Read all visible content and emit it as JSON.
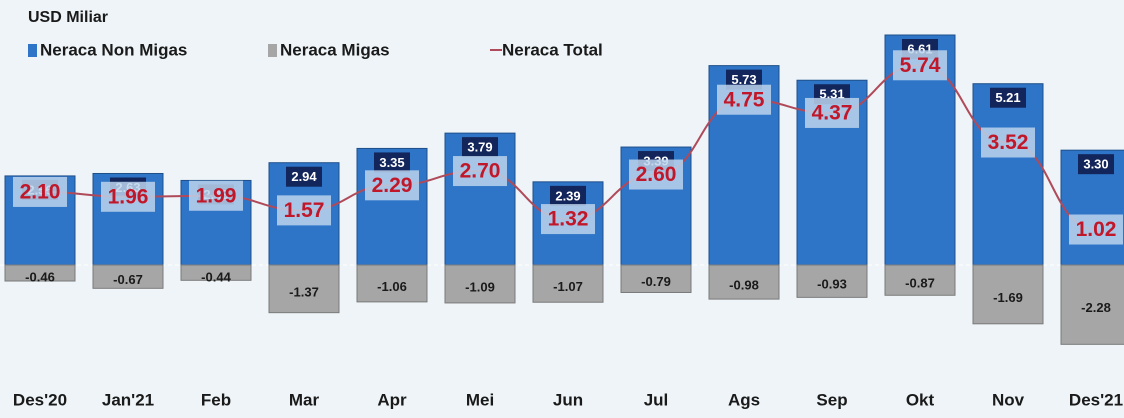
{
  "chart_data": {
    "type": "bar-line",
    "unit_label": "USD Miliar",
    "categories": [
      "Des'20",
      "Jan'21",
      "Feb",
      "Mar",
      "Apr",
      "Mei",
      "Jun",
      "Jul",
      "Ags",
      "Sep",
      "Okt",
      "Nov",
      "Des'21"
    ],
    "series": [
      {
        "name": "Neraca Non Migas",
        "type": "bar",
        "color": "#2e75c8",
        "values": [
          2.56,
          2.63,
          2.43,
          2.94,
          3.35,
          3.79,
          2.39,
          3.39,
          5.73,
          5.31,
          6.61,
          5.21,
          3.3
        ],
        "value_labels": [
          "2.56",
          "2.63",
          "2.43",
          "2.94",
          "3.35",
          "3.79",
          "2.39",
          "3.39",
          "5.73",
          "5.31",
          "6.61",
          "5.21",
          "3.30"
        ]
      },
      {
        "name": "Neraca Migas",
        "type": "bar",
        "color": "#a6a6a6",
        "values": [
          -0.46,
          -0.67,
          -0.44,
          -1.37,
          -1.06,
          -1.09,
          -1.07,
          -0.79,
          -0.98,
          -0.93,
          -0.87,
          -1.69,
          -2.28
        ],
        "value_labels": [
          "-0.46",
          "-0.67",
          "-0.44",
          "-1.37",
          "-1.06",
          "-1.09",
          "-1.07",
          "-0.79",
          "-0.98",
          "-0.93",
          "-0.87",
          "-1.69",
          "-2.28"
        ]
      },
      {
        "name": "Neraca Total",
        "type": "line",
        "color": "#b04a5a",
        "values": [
          2.1,
          1.96,
          1.99,
          1.57,
          2.29,
          2.7,
          1.32,
          2.6,
          4.75,
          4.37,
          5.74,
          3.52,
          1.02
        ],
        "value_labels": [
          "2.10",
          "1.96",
          "1.99",
          "1.57",
          "2.29",
          "2.70",
          "1.32",
          "2.60",
          "4.75",
          "4.37",
          "5.74",
          "3.52",
          "1.02"
        ]
      }
    ]
  }
}
